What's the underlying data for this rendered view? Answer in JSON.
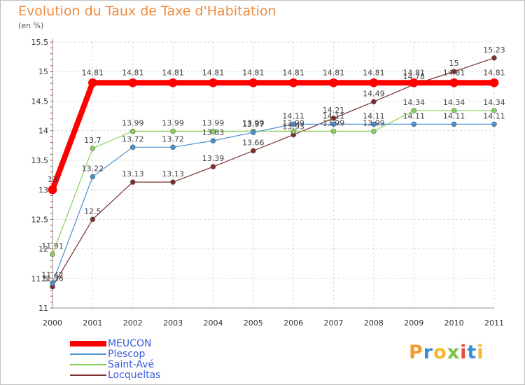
{
  "title": "Evolution du Taux de Taxe d'Habitation",
  "subtitle": "(en %)",
  "brand": {
    "letters": [
      "P",
      "r",
      "o",
      "x",
      "i",
      "t",
      "i"
    ],
    "colors": [
      "#f59b2a",
      "#3b8ed6",
      "#f5b82a",
      "#7ac143",
      "#e74c3c",
      "#3b8ed6",
      "#f5b82a"
    ]
  },
  "chart_data": {
    "type": "line",
    "title": "Evolution du Taux de Taxe d'Habitation",
    "ylabel": "(en %)",
    "xlabel": "",
    "x": [
      "2000",
      "2001",
      "2002",
      "2003",
      "2004",
      "2005",
      "2006",
      "2007",
      "2008",
      "2009",
      "2010",
      "2011"
    ],
    "ylim": [
      11,
      15.5
    ],
    "yticks": [
      "11",
      "11.5",
      "12",
      "12.5",
      "13",
      "13.5",
      "14",
      "14.5",
      "15",
      "15.5"
    ],
    "legend_position": "bottom-left",
    "series": [
      {
        "name": "MEUCON",
        "color": "#ff0000",
        "values": [
          13,
          14.81,
          14.81,
          14.81,
          14.81,
          14.81,
          14.81,
          14.81,
          14.81,
          14.81,
          14.81,
          14.81
        ],
        "labels": [
          "13",
          "14.81",
          "14.81",
          "14.81",
          "14.81",
          "14.81",
          "14.81",
          "14.81",
          "14.81",
          "14.81",
          "14.81",
          "14.81"
        ]
      },
      {
        "name": "Plescop",
        "color": "#4a8fcf",
        "values": [
          11.42,
          13.22,
          13.72,
          13.72,
          13.83,
          13.97,
          14.11,
          14.11,
          14.11,
          14.11,
          14.11,
          14.11
        ],
        "labels": [
          "11.42",
          "13.22",
          "13.72",
          "13.72",
          "13.83",
          "13.97",
          "14.11",
          "14.11",
          "14.11",
          "14.11",
          "14.11",
          "14.11"
        ]
      },
      {
        "name": "Saint-Avé",
        "color": "#88d05a",
        "values": [
          11.91,
          13.7,
          13.99,
          13.99,
          13.99,
          13.99,
          13.99,
          13.99,
          13.99,
          14.34,
          14.34,
          14.34
        ],
        "labels": [
          "11.91",
          "13.7",
          "13.99",
          "13.99",
          "13.99",
          "13.99",
          "13.99",
          "13.99",
          "13.99",
          "14.34",
          "14.34",
          "14.34"
        ]
      },
      {
        "name": "Locqueltas",
        "color": "#7a2e2e",
        "values": [
          11.36,
          12.5,
          13.13,
          13.13,
          13.39,
          13.66,
          13.93,
          14.21,
          14.49,
          14.78,
          15,
          15.23
        ],
        "labels": [
          "11.36",
          "12.5",
          "13.13",
          "13.13",
          "13.39",
          "13.66",
          "13.93",
          "14.21",
          "14.49",
          "14.78",
          "15",
          "15.23"
        ]
      }
    ]
  }
}
